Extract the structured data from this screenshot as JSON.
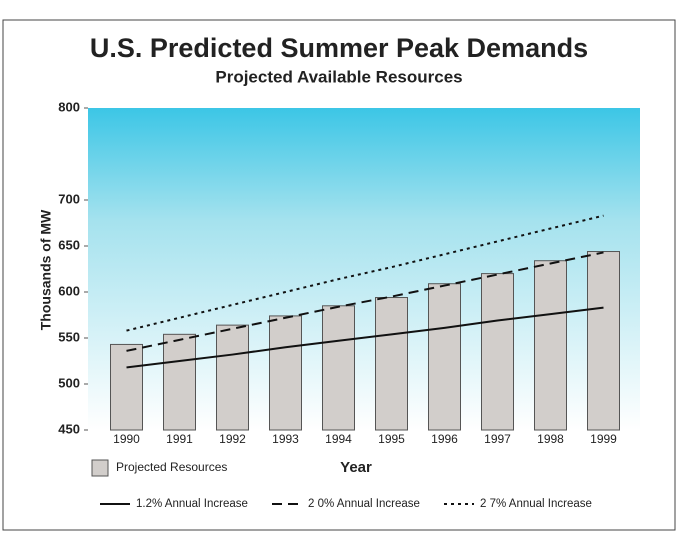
{
  "chart_data": {
    "type": "bar",
    "title": "U.S. Predicted Summer Peak Demands",
    "subtitle": "Projected Available Resources",
    "y_label": "Thousands of MW",
    "x_label": "Year",
    "categories": [
      "1990",
      "1991",
      "1992",
      "1993",
      "1994",
      "1995",
      "1996",
      "1997",
      "1998",
      "1999"
    ],
    "series": [
      {
        "name": "Projected Resources",
        "style": "bar",
        "color": "#d2cecb",
        "values": [
          543,
          554,
          564,
          574,
          585,
          594,
          609,
          620,
          634,
          644
        ]
      },
      {
        "name": "1.2% Annual Increase",
        "style": "solid",
        "color": "#111111",
        "values": [
          518,
          525,
          532,
          540,
          547,
          554,
          561,
          569,
          576,
          583
        ]
      },
      {
        "name": "2 0% Annual Increase",
        "style": "dashed",
        "color": "#111111",
        "values": [
          536,
          548,
          560,
          572,
          584,
          595,
          607,
          619,
          631,
          643
        ]
      },
      {
        "name": "2 7% Annual Increase",
        "style": "dotted",
        "color": "#111111",
        "values": [
          558,
          572,
          586,
          600,
          614,
          627,
          641,
          655,
          669,
          683
        ]
      }
    ],
    "ylim": [
      450,
      800
    ],
    "yticks": [
      450,
      500,
      550,
      600,
      650,
      700,
      800
    ]
  }
}
